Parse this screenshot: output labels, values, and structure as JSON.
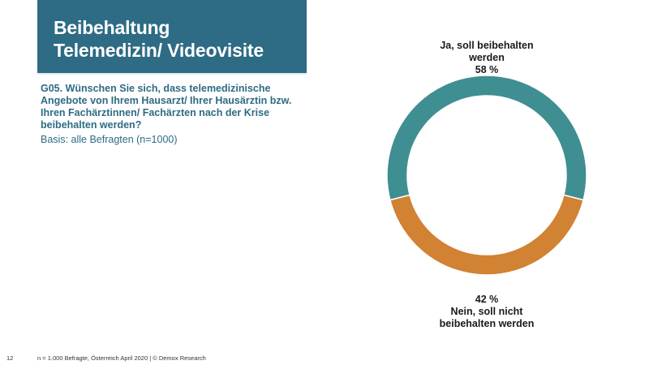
{
  "header": {
    "title_lines": [
      "Beibehaltung",
      "Telemedizin/ Videovisite"
    ]
  },
  "question": {
    "text_lines": [
      "G05. Wünschen Sie sich, dass telemedizinische",
      "Angebote von Ihrem Hausarzt/ Ihrer Hausärztin bzw.",
      "Ihren Fachärztinnen/ Fachärzten nach der Krise",
      "beibehalten werden?"
    ],
    "basis": "Basis: alle Befragten (n=1000)"
  },
  "chart_data": {
    "type": "pie",
    "donut": true,
    "series": [
      {
        "name": "Ja, soll beibehalten werden",
        "label_lines": [
          "Ja, soll beibehalten",
          "werden"
        ],
        "value": 58,
        "value_label": "58 %",
        "color": "#3f8e92"
      },
      {
        "name": "Nein, soll nicht beibehalten werden",
        "label_lines": [
          "Nein, soll nicht",
          "beibehalten werden"
        ],
        "value": 42,
        "value_label": "42 %",
        "color": "#d18232"
      }
    ]
  },
  "footer": {
    "page_number": "12",
    "source": "n = 1.000 Befragte, Österreich April 2020 | © Demox Research"
  }
}
